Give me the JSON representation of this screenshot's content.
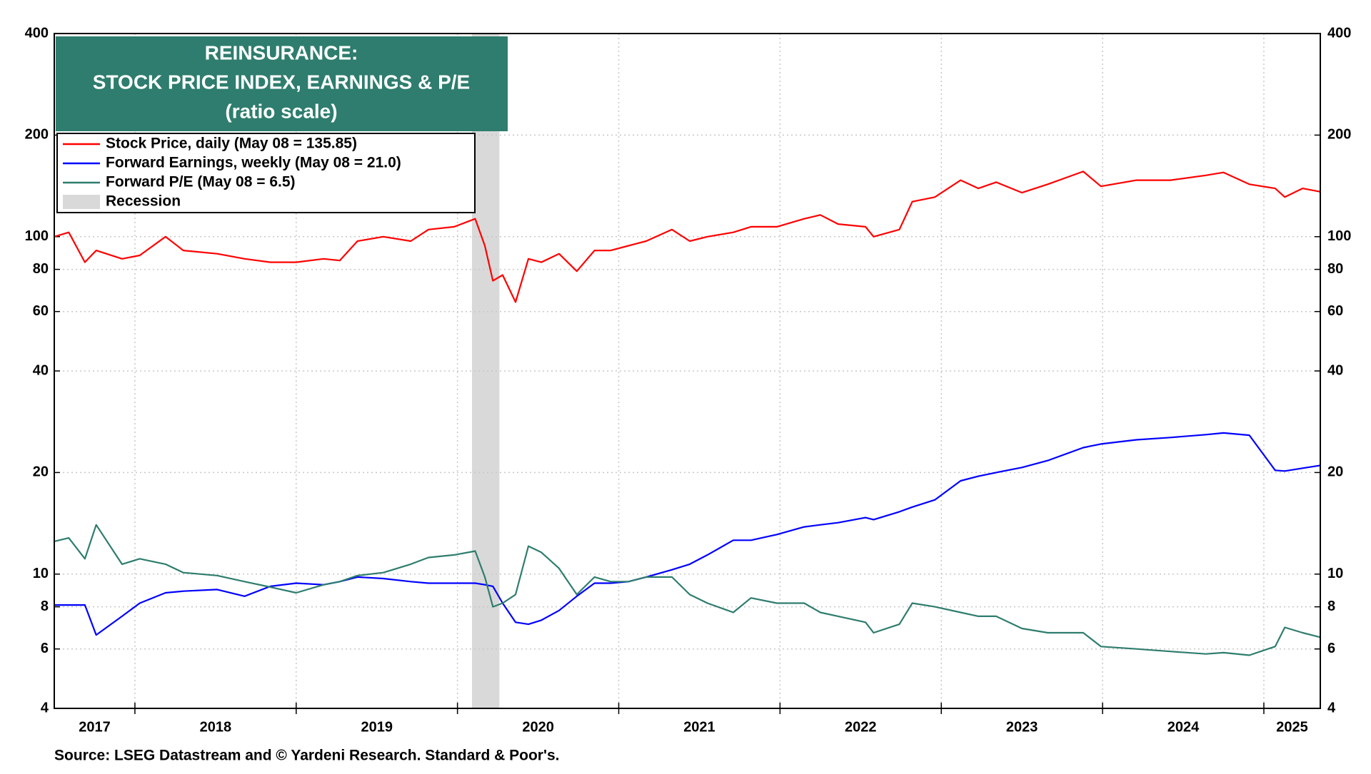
{
  "chart_data": {
    "type": "line",
    "title": [
      "REINSURANCE:",
      "STOCK PRICE INDEX, EARNINGS & P/E",
      "(ratio scale)"
    ],
    "source": "Source: LSEG Datastream and © Yardeni Research. Standard & Poor's.",
    "log_scale": true,
    "grid": true,
    "legend": "upper left",
    "ylim": [
      4,
      400
    ],
    "yticks": [
      4,
      6,
      8,
      10,
      20,
      40,
      60,
      80,
      100,
      200,
      400
    ],
    "xlim": [
      2017.5,
      2025.35
    ],
    "xticks": [
      {
        "value": 2017,
        "label": "2017"
      },
      {
        "value": 2018,
        "label": "2018"
      },
      {
        "value": 2019,
        "label": "2019"
      },
      {
        "value": 2020,
        "label": "2020"
      },
      {
        "value": 2021,
        "label": "2021"
      },
      {
        "value": 2022,
        "label": "2022"
      },
      {
        "value": 2023,
        "label": "2023"
      },
      {
        "value": 2024,
        "label": "2024"
      },
      {
        "value": 2025,
        "label": "2025"
      }
    ],
    "recession": {
      "name": "Recession",
      "color": "#d9d9d9",
      "x_range": [
        2020.09,
        2020.26
      ]
    },
    "x": [
      2017.5,
      2017.59,
      2017.69,
      2017.76,
      2017.92,
      2018.03,
      2018.19,
      2018.3,
      2018.51,
      2018.68,
      2018.84,
      2019.0,
      2019.17,
      2019.27,
      2019.38,
      2019.54,
      2019.71,
      2019.82,
      2019.98,
      2020.11,
      2020.17,
      2020.22,
      2020.28,
      2020.36,
      2020.44,
      2020.52,
      2020.63,
      2020.74,
      2020.85,
      2020.95,
      2021.06,
      2021.17,
      2021.33,
      2021.44,
      2021.55,
      2021.71,
      2021.82,
      2021.98,
      2022.15,
      2022.25,
      2022.36,
      2022.53,
      2022.58,
      2022.74,
      2022.82,
      2022.96,
      2023.12,
      2023.23,
      2023.34,
      2023.5,
      2023.66,
      2023.88,
      2023.99,
      2024.21,
      2024.42,
      2024.64,
      2024.75,
      2024.91,
      2025.07,
      2025.13,
      2025.24,
      2025.35
    ],
    "series": [
      {
        "name": "Stock Price, daily (May 08 = 135.85)",
        "color": "#ff0000",
        "values": [
          100,
          103,
          84,
          91,
          86,
          88,
          100,
          91,
          89,
          86,
          84,
          84,
          86,
          85,
          97,
          100,
          97,
          105,
          107,
          113,
          94,
          74,
          77,
          64,
          86,
          84,
          89,
          79,
          91,
          91,
          94,
          97,
          105,
          97,
          100,
          103,
          107,
          107,
          113,
          116,
          109,
          107,
          100,
          105,
          127,
          131,
          147,
          139,
          145,
          135,
          143,
          156,
          141,
          147,
          147,
          152,
          155,
          143,
          139,
          131,
          139,
          135.85
        ]
      },
      {
        "name": "Forward Earnings, weekly (May 08 = 21.0)",
        "color": "#0000ff",
        "values": [
          8.1,
          8.1,
          8.1,
          6.6,
          7.5,
          8.2,
          8.8,
          8.9,
          9.0,
          8.6,
          9.2,
          9.4,
          9.3,
          9.5,
          9.8,
          9.7,
          9.5,
          9.4,
          9.4,
          9.4,
          9.3,
          9.2,
          8.2,
          7.2,
          7.1,
          7.3,
          7.8,
          8.6,
          9.4,
          9.4,
          9.5,
          9.8,
          10.3,
          10.7,
          11.4,
          12.6,
          12.6,
          13.1,
          13.8,
          14.0,
          14.2,
          14.7,
          14.5,
          15.3,
          15.8,
          16.6,
          18.9,
          19.5,
          20.0,
          20.7,
          21.7,
          23.7,
          24.3,
          25.0,
          25.4,
          25.9,
          26.2,
          25.8,
          20.3,
          20.2,
          20.6,
          21.0
        ]
      },
      {
        "name": "Forward P/E (May 08 = 6.5)",
        "color": "#2e7d6e",
        "values": [
          12.5,
          12.8,
          11.1,
          14.0,
          10.7,
          11.1,
          10.7,
          10.1,
          9.9,
          9.5,
          9.15,
          8.8,
          9.3,
          9.5,
          9.9,
          10.1,
          10.7,
          11.2,
          11.4,
          11.7,
          9.8,
          8.0,
          8.2,
          8.7,
          12.1,
          11.6,
          10.4,
          8.7,
          9.8,
          9.5,
          9.5,
          9.8,
          9.8,
          8.7,
          8.2,
          7.7,
          8.5,
          8.2,
          8.2,
          7.7,
          7.5,
          7.2,
          6.7,
          7.1,
          8.2,
          8.0,
          7.7,
          7.5,
          7.5,
          6.9,
          6.7,
          6.7,
          6.1,
          6.0,
          5.9,
          5.8,
          5.85,
          5.75,
          6.1,
          6.95,
          6.7,
          6.5
        ]
      }
    ]
  }
}
